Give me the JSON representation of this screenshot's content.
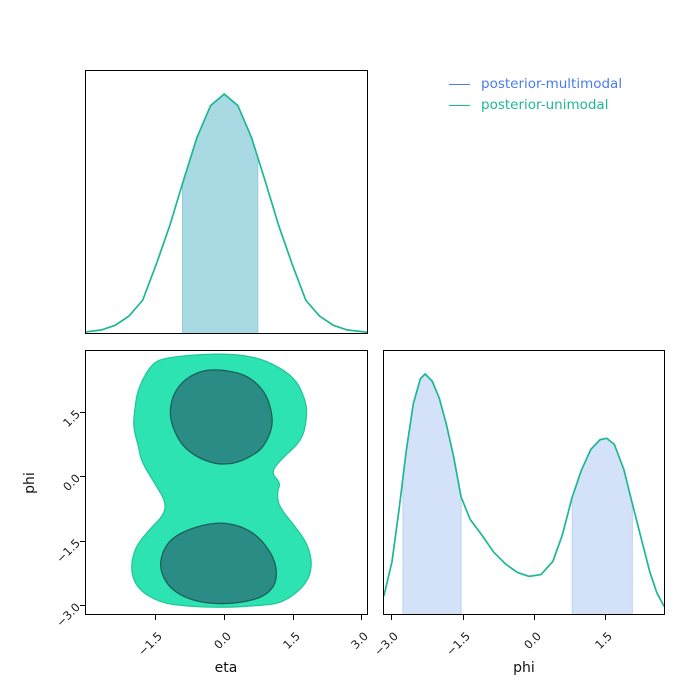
{
  "figure": {
    "kind": "corner-pair-plot",
    "background": "#ffffff"
  },
  "legend": {
    "entries": [
      {
        "label": "posterior-multimodal",
        "color": "#4b7ce8"
      },
      {
        "label": "posterior-unimodal",
        "color": "#1db795"
      }
    ]
  },
  "axes": {
    "eta_label": "eta",
    "phi_label": "phi"
  },
  "colors": {
    "curve": "#1db795",
    "eta_fill": "#a9dae3",
    "eta_fill_edge": "#8fccd6",
    "phi_fill": "#d3e2f8",
    "phi_fill_edge": "#bcd2f0",
    "contour_outer_fill": "#2ee3b2",
    "contour_outer_edge": "#22c79a",
    "contour_inner_fill": "#2b8c85",
    "contour_inner_edge": "#1a5f58",
    "spine": "#000000",
    "tick_text": "#1a1a1a"
  },
  "chart_data": [
    {
      "type": "area",
      "id": "eta-marginal-kde",
      "title": "",
      "xlabel": "eta",
      "ylabel": "",
      "xlim": [
        -3.05,
        3.15
      ],
      "ylim": [
        0,
        1
      ],
      "grid": false,
      "series": [
        {
          "name": "posterior-unimodal",
          "points": [
            [
              -3.05,
              0.004
            ],
            [
              -2.7,
              0.012
            ],
            [
              -2.4,
              0.03
            ],
            [
              -2.1,
              0.065
            ],
            [
              -1.8,
              0.125
            ],
            [
              -1.5,
              0.262
            ],
            [
              -1.2,
              0.411
            ],
            [
              -0.9,
              0.582
            ],
            [
              -0.6,
              0.747
            ],
            [
              -0.3,
              0.868
            ],
            [
              0,
              0.912
            ],
            [
              0.3,
              0.868
            ],
            [
              0.6,
              0.747
            ],
            [
              0.9,
              0.582
            ],
            [
              1.2,
              0.411
            ],
            [
              1.5,
              0.262
            ],
            [
              1.8,
              0.125
            ],
            [
              2.1,
              0.065
            ],
            [
              2.4,
              0.03
            ],
            [
              2.7,
              0.012
            ],
            [
              3.15,
              0.003
            ]
          ]
        }
      ],
      "shaded_intervals": [
        [
          -0.92,
          0.74
        ]
      ],
      "x_ticks": [],
      "y_ticks": []
    },
    {
      "type": "heatmap",
      "id": "eta-phi-joint-density",
      "representation": "filled-contour",
      "title": "",
      "xlabel": "eta",
      "ylabel": "phi",
      "xlim": [
        -3.04,
        3.15
      ],
      "ylim": [
        -3.23,
        2.95
      ],
      "grid": false,
      "x_ticks": [
        {
          "v": -1.5,
          "label": "−1.5"
        },
        {
          "v": 0,
          "label": "0.0"
        },
        {
          "v": 1.5,
          "label": "1.5"
        },
        {
          "v": 3.0,
          "label": "3.0"
        }
      ],
      "y_ticks": [
        {
          "v": 1.5,
          "label": "1.5"
        },
        {
          "v": 0,
          "label": "0.0"
        },
        {
          "v": -1.5,
          "label": "−1.5"
        },
        {
          "v": -3.0,
          "label": "−3.0"
        }
      ],
      "contour_levels": [
        {
          "level": "outer",
          "polygon": [
            [
              -1.33,
              2.79
            ],
            [
              -1.62,
              2.62
            ],
            [
              -1.9,
              2.05
            ],
            [
              -1.97,
              1.55
            ],
            [
              -2.0,
              1.15
            ],
            [
              -1.88,
              0.7
            ],
            [
              -1.82,
              0.35
            ],
            [
              -1.5,
              -0.2
            ],
            [
              -1.28,
              -0.6
            ],
            [
              -1.32,
              -0.9
            ],
            [
              -1.65,
              -1.25
            ],
            [
              -1.97,
              -1.68
            ],
            [
              -2.06,
              -2.2
            ],
            [
              -1.9,
              -2.65
            ],
            [
              -1.4,
              -2.97
            ],
            [
              -0.8,
              -3.05
            ],
            [
              0.0,
              -3.08
            ],
            [
              0.8,
              -3.03
            ],
            [
              1.3,
              -2.97
            ],
            [
              1.8,
              -2.55
            ],
            [
              1.95,
              -2.1
            ],
            [
              1.85,
              -1.6
            ],
            [
              1.55,
              -1.15
            ],
            [
              1.2,
              -0.7
            ],
            [
              1.17,
              -0.35
            ],
            [
              1.25,
              -0.15
            ],
            [
              1.02,
              0.1
            ],
            [
              1.3,
              0.45
            ],
            [
              1.72,
              0.85
            ],
            [
              1.83,
              1.4
            ],
            [
              1.8,
              1.8
            ],
            [
              1.55,
              2.35
            ],
            [
              0.9,
              2.75
            ],
            [
              0.3,
              2.87
            ],
            [
              -0.4,
              2.88
            ]
          ]
        },
        {
          "level": "inner-top",
          "polygon": [
            [
              -0.31,
              2.52
            ],
            [
              0.15,
              2.48
            ],
            [
              0.55,
              2.35
            ],
            [
              0.9,
              2.0
            ],
            [
              1.05,
              1.55
            ],
            [
              1.07,
              1.15
            ],
            [
              0.9,
              0.75
            ],
            [
              0.72,
              0.55
            ],
            [
              0.3,
              0.32
            ],
            [
              -0.1,
              0.28
            ],
            [
              -0.5,
              0.4
            ],
            [
              -0.85,
              0.65
            ],
            [
              -1.05,
              0.95
            ],
            [
              -1.2,
              1.4
            ],
            [
              -1.15,
              1.85
            ],
            [
              -0.95,
              2.2
            ],
            [
              -0.65,
              2.42
            ]
          ]
        },
        {
          "level": "inner-bottom",
          "polygon": [
            [
              0.02,
              -1.08
            ],
            [
              0.45,
              -1.2
            ],
            [
              0.8,
              -1.45
            ],
            [
              1.1,
              -1.9
            ],
            [
              1.17,
              -2.3
            ],
            [
              1.1,
              -2.6
            ],
            [
              0.85,
              -2.83
            ],
            [
              0.45,
              -2.95
            ],
            [
              -0.05,
              -3.0
            ],
            [
              -0.55,
              -2.95
            ],
            [
              -0.95,
              -2.8
            ],
            [
              -1.25,
              -2.55
            ],
            [
              -1.42,
              -2.15
            ],
            [
              -1.35,
              -1.75
            ],
            [
              -1.15,
              -1.45
            ],
            [
              -0.8,
              -1.25
            ],
            [
              -0.4,
              -1.12
            ]
          ]
        }
      ]
    },
    {
      "type": "area",
      "id": "phi-marginal-kde",
      "title": "",
      "xlabel": "phi",
      "ylabel": "",
      "xlim": [
        -3.17,
        2.75
      ],
      "ylim": [
        0,
        1
      ],
      "grid": false,
      "series": [
        {
          "name": "posterior-multimodal",
          "points": [
            [
              -3.17,
              0.07
            ],
            [
              -3.0,
              0.2
            ],
            [
              -2.85,
              0.4
            ],
            [
              -2.7,
              0.62
            ],
            [
              -2.55,
              0.8
            ],
            [
              -2.4,
              0.895
            ],
            [
              -2.3,
              0.913
            ],
            [
              -2.15,
              0.885
            ],
            [
              -2.0,
              0.82
            ],
            [
              -1.85,
              0.72
            ],
            [
              -1.7,
              0.6
            ],
            [
              -1.54,
              0.445
            ],
            [
              -1.35,
              0.36
            ],
            [
              -1.1,
              0.3
            ],
            [
              -0.85,
              0.235
            ],
            [
              -0.6,
              0.19
            ],
            [
              -0.35,
              0.158
            ],
            [
              -0.1,
              0.143
            ],
            [
              0.15,
              0.15
            ],
            [
              0.4,
              0.2
            ],
            [
              0.6,
              0.3
            ],
            [
              0.81,
              0.445
            ],
            [
              1.0,
              0.545
            ],
            [
              1.2,
              0.625
            ],
            [
              1.4,
              0.663
            ],
            [
              1.54,
              0.668
            ],
            [
              1.7,
              0.645
            ],
            [
              1.9,
              0.55
            ],
            [
              2.08,
              0.42
            ],
            [
              2.25,
              0.3
            ],
            [
              2.45,
              0.16
            ],
            [
              2.6,
              0.08
            ],
            [
              2.75,
              0.03
            ]
          ]
        }
      ],
      "shaded_intervals": [
        [
          -2.77,
          -1.54
        ],
        [
          0.81,
          2.08
        ]
      ],
      "x_ticks": [
        {
          "v": -3.0,
          "label": "−3.0"
        },
        {
          "v": -1.5,
          "label": "−1.5"
        },
        {
          "v": 0,
          "label": "0.0"
        },
        {
          "v": 1.5,
          "label": "1.5"
        }
      ],
      "y_ticks": []
    }
  ]
}
